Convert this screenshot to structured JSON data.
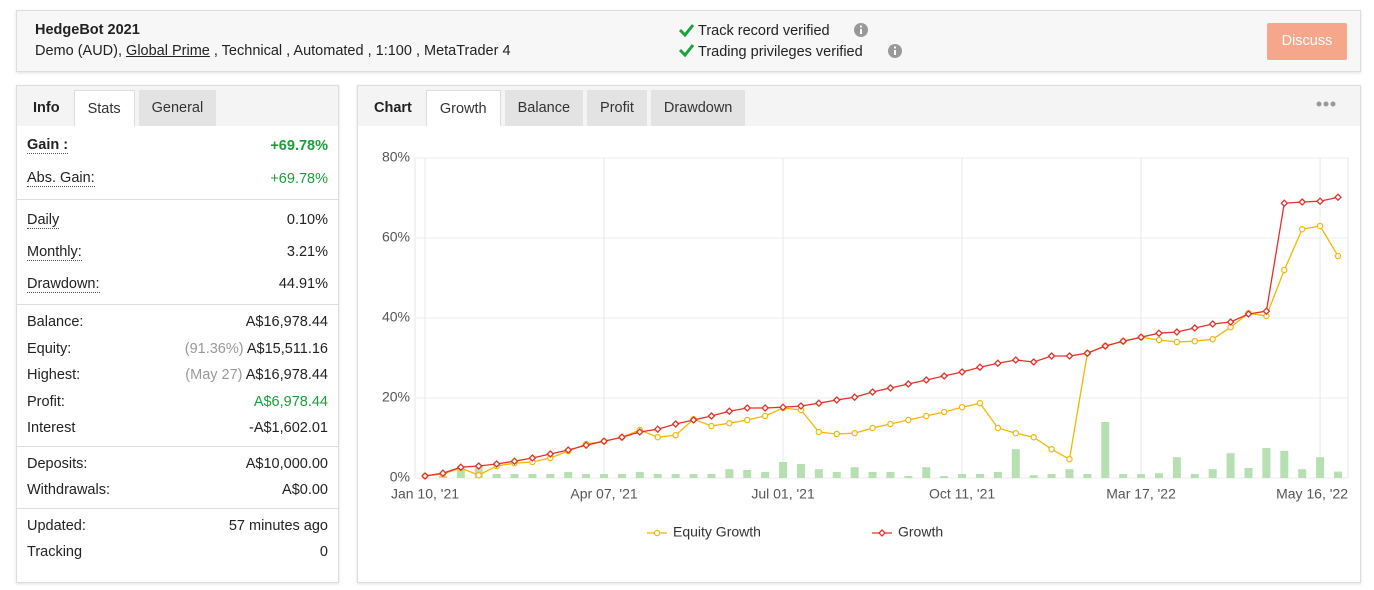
{
  "header": {
    "title": "HedgeBot 2021",
    "details": [
      "Demo (AUD),",
      "Global Prime",
      ", Technical , Automated , 1:100 , MetaTrader 4"
    ],
    "verifications": [
      "Track record verified",
      "Trading privileges verified"
    ],
    "button": "Discuss"
  },
  "stats": {
    "tabs": [
      "Info",
      "Stats",
      "General"
    ],
    "groups": [
      [
        {
          "label": "Gain :",
          "value": "+69.78%",
          "color": "#1a9e3a",
          "bold": true
        },
        {
          "label": "Abs. Gain:",
          "value": "+69.78%",
          "color": "#1a9e3a"
        }
      ],
      [
        {
          "label": "Daily",
          "value": "0.10%"
        },
        {
          "label": "Monthly:",
          "value": "3.21%"
        },
        {
          "label": "Drawdown:",
          "value": "44.91%"
        }
      ],
      [
        {
          "label": "Balance:",
          "value": "A$16,978.44"
        },
        {
          "label": "Equity:",
          "note": "(91.36%)",
          "value": "A$15,511.16"
        },
        {
          "label": "Highest:",
          "note": "(May 27)",
          "value": "A$16,978.44"
        },
        {
          "label": "Profit:",
          "value": "A$6,978.44",
          "color": "#1a9e3a"
        },
        {
          "label": "Interest",
          "value": "-A$1,602.01"
        }
      ],
      [
        {
          "label": "Deposits:",
          "value": "A$10,000.00"
        },
        {
          "label": "Withdrawals:",
          "value": "A$0.00"
        }
      ],
      [
        {
          "label": "Updated:",
          "value": "57 minutes ago"
        },
        {
          "label": "Tracking",
          "value": "0"
        }
      ]
    ]
  },
  "chart_panel": {
    "label": "Chart",
    "tabs": [
      "Growth",
      "Balance",
      "Profit",
      "Drawdown"
    ]
  },
  "chart_data": {
    "type": "line",
    "categories": [
      "Jan 10, '21",
      null,
      null,
      null,
      null,
      null,
      null,
      null,
      null,
      null,
      "Apr 07, '21",
      null,
      null,
      null,
      null,
      null,
      null,
      null,
      null,
      null,
      "Jul 01, '21",
      null,
      null,
      null,
      null,
      null,
      null,
      null,
      null,
      null,
      "Oct 11, '21",
      null,
      null,
      null,
      null,
      null,
      null,
      null,
      null,
      null,
      "Mar 17, '22",
      null,
      null,
      null,
      null,
      null,
      null,
      null,
      null,
      null,
      "May 16, '22",
      null
    ],
    "ylim": [
      0,
      80
    ],
    "yticks": [
      {
        "value": 0,
        "label": "0%"
      },
      {
        "value": 20,
        "label": "20%"
      },
      {
        "value": 40,
        "label": "40%"
      },
      {
        "value": 60,
        "label": "60%"
      },
      {
        "value": 80,
        "label": "80%"
      }
    ],
    "grid": true,
    "series": [
      {
        "type": "bar",
        "color": "#b6dfb2",
        "values": [
          0,
          0.5,
          2,
          3,
          1,
          1,
          1,
          1,
          1.5,
          1,
          1,
          1,
          1.5,
          1,
          1,
          1,
          1,
          2.2,
          2,
          1.5,
          4,
          3.5,
          2.2,
          1.5,
          2.7,
          1.5,
          1.5,
          0.5,
          2.7,
          0.5,
          1,
          1,
          1.5,
          7.2,
          0.7,
          1,
          2.2,
          1,
          14,
          1,
          1,
          1.2,
          5.2,
          1,
          2.2,
          6.2,
          2.5,
          7.5,
          6.8,
          2.2,
          5.2,
          1.6
        ]
      },
      {
        "name": "Equity Growth",
        "color": "#f2b705",
        "marker": "circle",
        "values": [
          0.5,
          1,
          2.5,
          0.7,
          3,
          3.7,
          4,
          5,
          6.7,
          8.5,
          9.2,
          10.2,
          12,
          10.2,
          10.7,
          14.7,
          13,
          13.7,
          14.5,
          15.5,
          17.5,
          17,
          11.5,
          11,
          11.2,
          12.5,
          13.5,
          14.5,
          15.5,
          16.5,
          17.7,
          18.7,
          12.5,
          11.2,
          10.2,
          7.2,
          4.7,
          31.2,
          33,
          34.2,
          35.2,
          34.5,
          34,
          34.2,
          34.7,
          37.7,
          41.2,
          40.5,
          52,
          62.2,
          63,
          55.5
        ]
      },
      {
        "name": "Growth",
        "color": "#e0332a",
        "marker": "diamond",
        "values": [
          0.5,
          1.2,
          2.7,
          3,
          3.5,
          4.2,
          5,
          6,
          7,
          8.2,
          9.2,
          10.2,
          11.5,
          12.2,
          13.5,
          14.5,
          15.5,
          16.7,
          17.5,
          17.5,
          17.7,
          18,
          18.7,
          19.5,
          20.2,
          21.5,
          22.5,
          23.5,
          24.5,
          25.5,
          26.5,
          27.7,
          28.7,
          29.5,
          29,
          30.5,
          30.5,
          31.2,
          33,
          34.2,
          35.2,
          36.2,
          36.5,
          37.5,
          38.5,
          39,
          41,
          41.7,
          68.7,
          69,
          69.2,
          70.2
        ]
      }
    ]
  }
}
